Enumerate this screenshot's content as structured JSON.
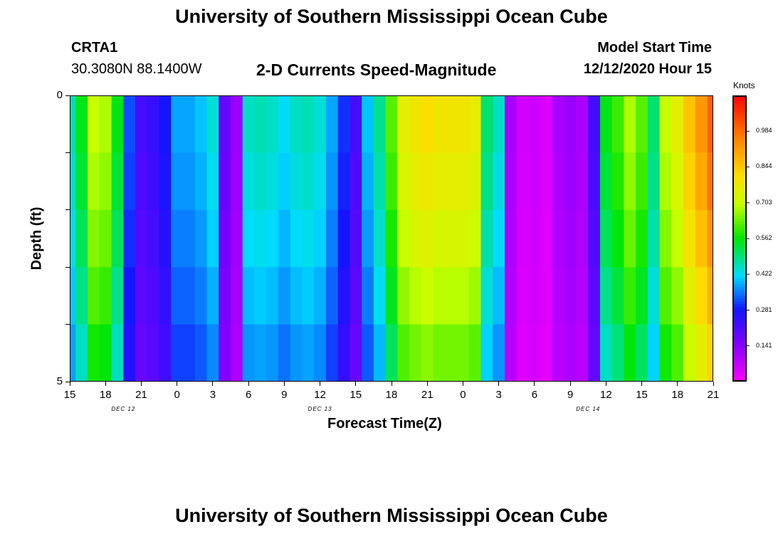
{
  "header": {
    "title": "University of Southern Mississippi Ocean Cube",
    "station": "CRTA1",
    "coords": "30.3080N 88.1400W",
    "subtitle": "2-D Currents Speed-Magnitude",
    "model_start_label": "Model Start Time",
    "model_start_value": "12/12/2020 Hour 15"
  },
  "footer": {
    "title": "University of Southern Mississippi Ocean Cube"
  },
  "chart_data": {
    "type": "heatmap",
    "title": "2-D Currents Speed-Magnitude",
    "xlabel": "Forecast Time(Z)",
    "ylabel": "Depth (ft)",
    "x_tick_labels": [
      "15",
      "18",
      "21",
      "0",
      "3",
      "6",
      "9",
      "12",
      "15",
      "18",
      "21",
      "0",
      "3",
      "6",
      "9",
      "12",
      "15",
      "18",
      "21"
    ],
    "day_labels": [
      {
        "text": "DEC 12",
        "tick_index": 1.5
      },
      {
        "text": "DEC 13",
        "tick_index": 7
      },
      {
        "text": "DEC 14",
        "tick_index": 14.5
      }
    ],
    "y_tick_labels": [
      "0",
      "5"
    ],
    "ylim": [
      0,
      5
    ],
    "x_hours": [
      0,
      54
    ],
    "depth_layers": 5,
    "colorbar": {
      "unit": "Knots",
      "min": 0.0,
      "max": 1.125,
      "tick_labels": [
        "0.984",
        "0.844",
        "0.703",
        "0.562",
        "0.422",
        "0.281",
        "0.141"
      ],
      "tick_values": [
        0.984,
        0.844,
        0.703,
        0.562,
        0.422,
        0.281,
        0.141
      ]
    },
    "profile_hours": [
      0,
      1,
      2,
      3,
      4,
      5,
      6,
      7,
      8,
      9,
      10,
      11,
      12,
      13,
      14,
      15,
      16,
      17,
      18,
      19,
      20,
      21,
      22,
      23,
      24,
      25,
      26,
      27,
      28,
      29,
      30,
      31,
      32,
      33,
      34,
      35,
      36,
      37,
      38,
      39,
      40,
      41,
      42,
      43,
      44,
      45,
      46,
      47,
      48,
      49,
      50,
      51,
      52,
      53,
      54
    ],
    "surface_speed": [
      0.46,
      0.55,
      0.7,
      0.68,
      0.55,
      0.32,
      0.22,
      0.24,
      0.28,
      0.38,
      0.38,
      0.4,
      0.44,
      0.18,
      0.12,
      0.45,
      0.46,
      0.45,
      0.42,
      0.45,
      0.46,
      0.44,
      0.38,
      0.3,
      0.22,
      0.4,
      0.48,
      0.62,
      0.75,
      0.78,
      0.8,
      0.78,
      0.78,
      0.78,
      0.76,
      0.5,
      0.45,
      0.1,
      0.05,
      0.06,
      0.04,
      0.1,
      0.12,
      0.1,
      0.22,
      0.55,
      0.6,
      0.68,
      0.62,
      0.5,
      0.7,
      0.75,
      0.85,
      0.92,
      1.0
    ],
    "depth_factors": [
      1.0,
      0.97,
      0.93,
      0.88,
      0.82
    ]
  }
}
